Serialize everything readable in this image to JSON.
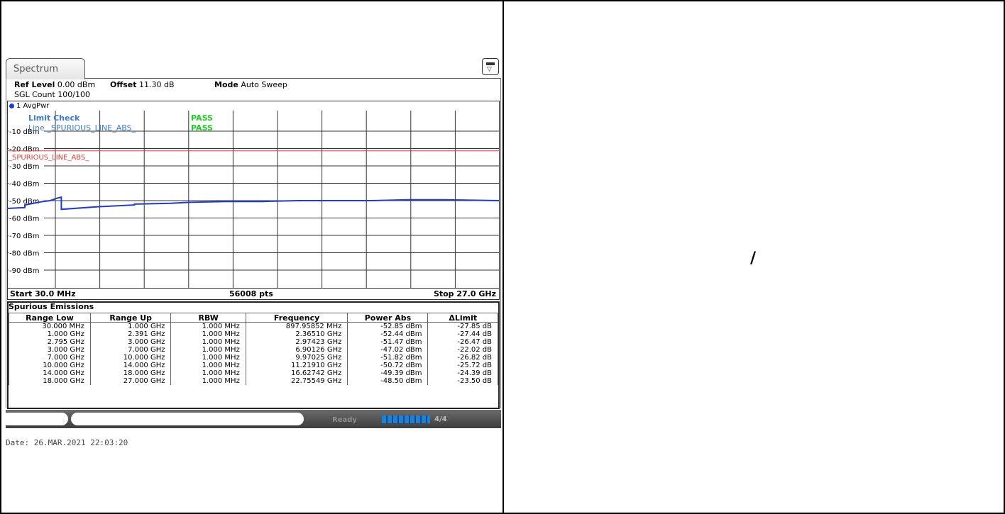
{
  "window": {
    "tab_label": "Spectrum"
  },
  "header": {
    "ref_level_label": "Ref Level",
    "ref_level_value": "0.00 dBm",
    "offset_label": "Offset",
    "offset_value": "11.30 dB",
    "mode_label": "Mode",
    "mode_value": "Auto Sweep",
    "sgl_count": "SGL Count 100/100"
  },
  "trace": {
    "label": "1 AvgPwr",
    "color": "#1f3bd6"
  },
  "limit_check": {
    "title": "Limit Check",
    "title_result": "PASS",
    "line_name": "Line _SPURIOUS_LINE_ABS_",
    "line_result": "PASS",
    "limit_line_label": "_SPURIOUS_LINE_ABS_",
    "limit_line_value_dbm": -25,
    "pass_color": "#22cc22",
    "limit_color": "#e23a3a"
  },
  "chart_data": {
    "type": "line",
    "title": "",
    "xlabel": "",
    "ylabel": "",
    "x_unit": "GHz",
    "xlim": [
      0.03,
      27.0
    ],
    "ylim": [
      -100,
      0
    ],
    "y_ticks": [
      "-10 dBm",
      "-20 dBm",
      "-30 dBm",
      "-40 dBm",
      "-50 dBm",
      "-60 dBm",
      "-70 dBm",
      "-80 dBm",
      "-90 dBm"
    ],
    "grid": true,
    "series": [
      {
        "x": [
          0.03,
          1.0,
          1.0,
          2.0,
          2.391,
          2.795,
          3.0,
          3.0,
          5.0,
          7.0,
          7.0,
          9.0,
          10.0,
          12.0,
          14.0,
          16.0,
          18.0,
          20.0,
          22.0,
          24.0,
          27.0
        ],
        "y": [
          -54.5,
          -54,
          -52.5,
          -50.5,
          -50,
          -48.5,
          -48,
          -55,
          -53.5,
          -52.5,
          -52,
          -51.5,
          -51,
          -50.5,
          -50.5,
          -50,
          -50,
          -50,
          -49.5,
          -49.5,
          -50
        ]
      }
    ]
  },
  "x_axis": {
    "start": "Start 30.0 MHz",
    "points": "56008 pts",
    "stop": "Stop 27.0 GHz"
  },
  "spurious_table": {
    "title": "Spurious Emissions",
    "columns": [
      "Range Low",
      "Range Up",
      "RBW",
      "Frequency",
      "Power Abs",
      "ΔLimit"
    ],
    "rows": [
      [
        "30.000 MHz",
        "1.000 GHz",
        "1.000 MHz",
        "897.95852 MHz",
        "-52.85 dBm",
        "-27.85 dB"
      ],
      [
        "1.000 GHz",
        "2.391 GHz",
        "1.000 MHz",
        "2.36510 GHz",
        "-52.44 dBm",
        "-27.44 dB"
      ],
      [
        "2.795 GHz",
        "3.000 GHz",
        "1.000 MHz",
        "2.97423 GHz",
        "-51.47 dBm",
        "-26.47 dB"
      ],
      [
        "3.000 GHz",
        "7.000 GHz",
        "1.000 MHz",
        "6.90126 GHz",
        "-47.02 dBm",
        "-22.02 dB"
      ],
      [
        "7.000 GHz",
        "10.000 GHz",
        "1.000 MHz",
        "9.97025 GHz",
        "-51.82 dBm",
        "-26.82 dB"
      ],
      [
        "10.000 GHz",
        "14.000 GHz",
        "1.000 MHz",
        "11.21910 GHz",
        "-50.72 dBm",
        "-25.72 dB"
      ],
      [
        "14.000 GHz",
        "18.000 GHz",
        "1.000 MHz",
        "16.62742 GHz",
        "-49.39 dBm",
        "-24.39 dB"
      ],
      [
        "18.000 GHz",
        "27.000 GHz",
        "1.000 MHz",
        "22.75549 GHz",
        "-48.50 dBm",
        "-23.50 dB"
      ]
    ]
  },
  "status": {
    "ready": "Ready",
    "mode": "4/4"
  },
  "footer": {
    "date": "Date: 26.MAR.2021  22:03:20"
  },
  "right_panel": {
    "text": "/"
  }
}
